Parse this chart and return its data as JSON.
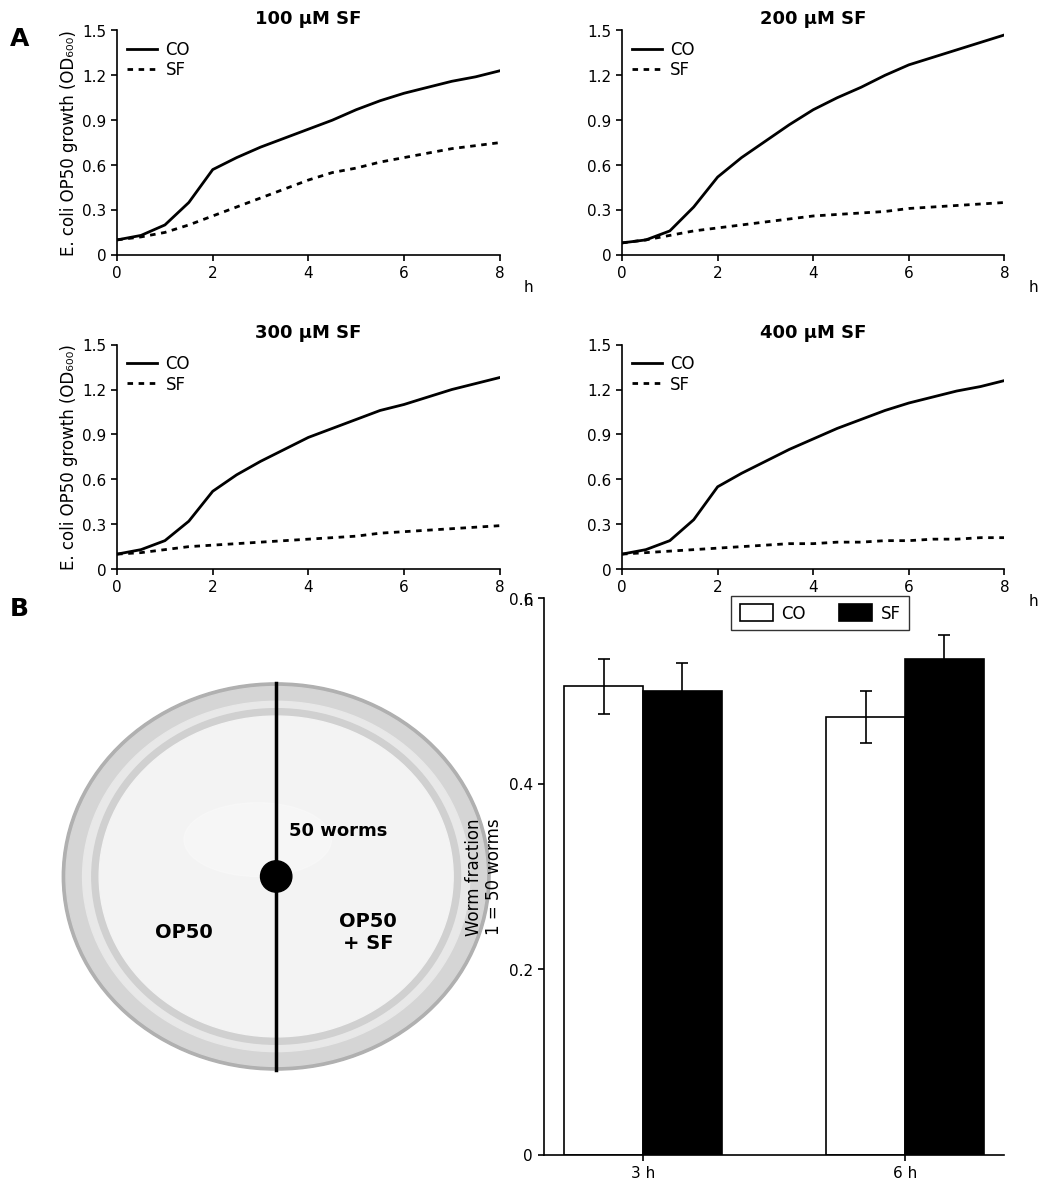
{
  "titles": [
    "100 μM SF",
    "200 μM SF",
    "300 μM SF",
    "400 μM SF"
  ],
  "panel_label_A": "A",
  "panel_label_B": "B",
  "ylabel_growth": "E. coli OP50 growth (OD₆₀₀)",
  "xlabel_growth": "h",
  "ylim_growth": [
    0,
    1.5
  ],
  "yticks_growth": [
    0,
    0.3,
    0.6,
    0.9,
    1.2,
    1.5
  ],
  "xlim_growth": [
    0,
    8
  ],
  "xticks_growth": [
    0,
    2,
    4,
    6,
    8
  ],
  "time": [
    0.0,
    0.5,
    1.0,
    1.5,
    2.0,
    2.5,
    3.0,
    3.5,
    4.0,
    4.5,
    5.0,
    5.5,
    6.0,
    6.5,
    7.0,
    7.5,
    8.0
  ],
  "co_100": [
    0.1,
    0.13,
    0.2,
    0.35,
    0.57,
    0.65,
    0.72,
    0.78,
    0.84,
    0.9,
    0.97,
    1.03,
    1.08,
    1.12,
    1.16,
    1.19,
    1.23
  ],
  "sf_100": [
    0.1,
    0.12,
    0.15,
    0.2,
    0.26,
    0.32,
    0.38,
    0.44,
    0.5,
    0.55,
    0.58,
    0.62,
    0.65,
    0.68,
    0.71,
    0.73,
    0.75
  ],
  "co_200": [
    0.08,
    0.1,
    0.16,
    0.32,
    0.52,
    0.65,
    0.76,
    0.87,
    0.97,
    1.05,
    1.12,
    1.2,
    1.27,
    1.32,
    1.37,
    1.42,
    1.47
  ],
  "sf_200": [
    0.08,
    0.1,
    0.13,
    0.16,
    0.18,
    0.2,
    0.22,
    0.24,
    0.26,
    0.27,
    0.28,
    0.29,
    0.31,
    0.32,
    0.33,
    0.34,
    0.35
  ],
  "co_300": [
    0.1,
    0.13,
    0.19,
    0.32,
    0.52,
    0.63,
    0.72,
    0.8,
    0.88,
    0.94,
    1.0,
    1.06,
    1.1,
    1.15,
    1.2,
    1.24,
    1.28
  ],
  "sf_300": [
    0.1,
    0.11,
    0.13,
    0.15,
    0.16,
    0.17,
    0.18,
    0.19,
    0.2,
    0.21,
    0.22,
    0.24,
    0.25,
    0.26,
    0.27,
    0.28,
    0.29
  ],
  "co_400": [
    0.1,
    0.13,
    0.19,
    0.33,
    0.55,
    0.64,
    0.72,
    0.8,
    0.87,
    0.94,
    1.0,
    1.06,
    1.11,
    1.15,
    1.19,
    1.22,
    1.26
  ],
  "sf_400": [
    0.1,
    0.11,
    0.12,
    0.13,
    0.14,
    0.15,
    0.16,
    0.17,
    0.17,
    0.18,
    0.18,
    0.19,
    0.19,
    0.2,
    0.2,
    0.21,
    0.21
  ],
  "bar_categories": [
    "3 h",
    "6 h"
  ],
  "bar_co_vals": [
    0.505,
    0.472
  ],
  "bar_sf_vals": [
    0.5,
    0.535
  ],
  "bar_co_err": [
    0.03,
    0.028
  ],
  "bar_sf_err": [
    0.03,
    0.025
  ],
  "bar_ylabel": "Worm fraction\n1 = 50 worms",
  "bar_ylim": [
    0,
    0.6
  ],
  "bar_yticks": [
    0,
    0.2,
    0.4,
    0.6
  ],
  "legend_co": "CO",
  "legend_sf": "SF",
  "co_color": "#000000",
  "sf_color": "#000000",
  "bar_co_color": "#ffffff",
  "bar_sf_color": "#000000",
  "title_fontsize": 13,
  "label_fontsize": 12,
  "tick_fontsize": 11,
  "legend_fontsize": 12,
  "linewidth": 2.0,
  "background_color": "#ffffff",
  "petri_bg": "#f5f5f5",
  "petri_outer_ring": "#cccccc",
  "petri_inner_ring": "#e0e0e0",
  "petri_agar": "#f8f8f8"
}
